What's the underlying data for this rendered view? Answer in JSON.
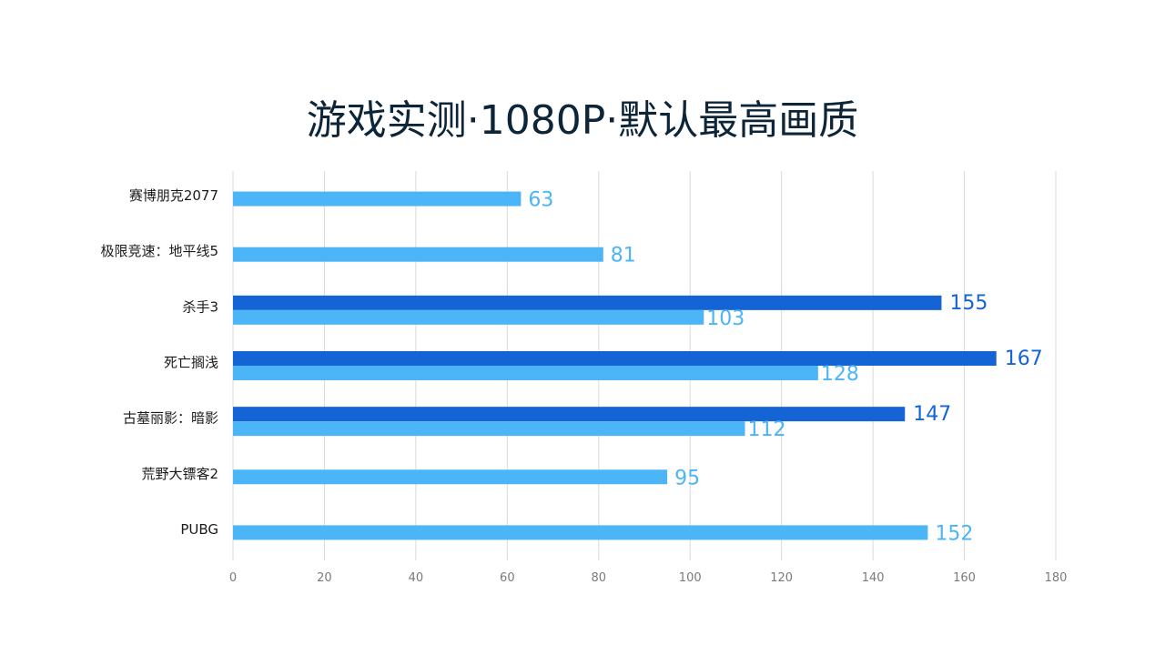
{
  "title": "游戏实测·1080P·默认最高画质",
  "chart_data": {
    "type": "bar",
    "orientation": "horizontal",
    "title": "游戏实测·1080P·默认最高画质",
    "categories": [
      "赛博朋克2077",
      "极限竞速：地平线5",
      "杀手3",
      "死亡搁浅",
      "古墓丽影：暗影",
      "荒野大镖客2",
      "PUBG"
    ],
    "series": [
      {
        "color": "#1464d6",
        "values": [
          null,
          null,
          155,
          167,
          147,
          null,
          null
        ]
      },
      {
        "color": "#4bb5f7",
        "values": [
          63,
          81,
          103,
          128,
          112,
          95,
          152
        ]
      }
    ],
    "xlim": [
      0,
      180
    ],
    "xticks": [
      0,
      20,
      40,
      60,
      80,
      100,
      120,
      140,
      160,
      180
    ],
    "grid": "vertical",
    "xlabel": "",
    "ylabel": ""
  }
}
